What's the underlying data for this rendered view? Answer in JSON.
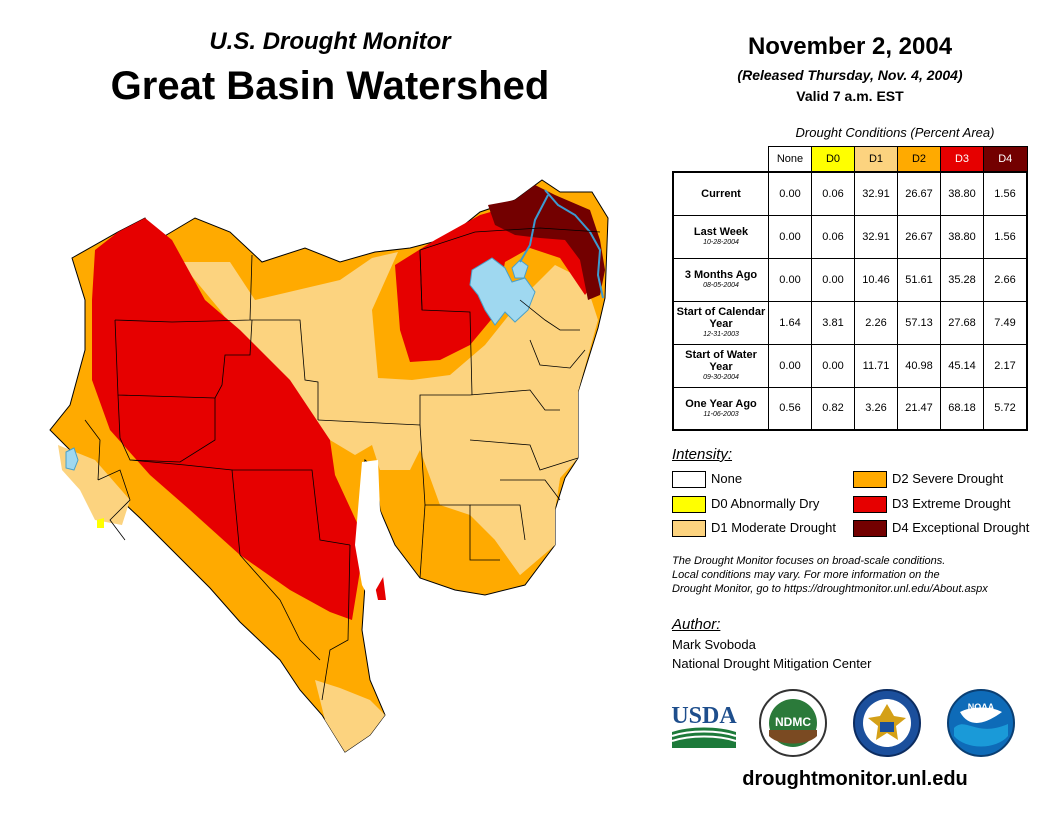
{
  "header": {
    "subtitle": "U.S. Drought Monitor",
    "title": "Great Basin Watershed",
    "date": "November 2, 2004",
    "released": "(Released Thursday, Nov. 4, 2004)",
    "valid": "Valid 7 a.m. EST"
  },
  "table": {
    "caption": "Drought Conditions (Percent Area)",
    "columns": [
      "None",
      "D0",
      "D1",
      "D2",
      "D3",
      "D4"
    ],
    "rows": [
      {
        "label": "Current",
        "date": "",
        "values": [
          "0.00",
          "0.06",
          "32.91",
          "26.67",
          "38.80",
          "1.56"
        ]
      },
      {
        "label": "Last Week",
        "date": "10-28-2004",
        "values": [
          "0.00",
          "0.06",
          "32.91",
          "26.67",
          "38.80",
          "1.56"
        ]
      },
      {
        "label": "3 Months Ago",
        "date": "08-05-2004",
        "values": [
          "0.00",
          "0.00",
          "10.46",
          "51.61",
          "35.28",
          "2.66"
        ]
      },
      {
        "label": "Start of Calendar Year",
        "date": "12-31-2003",
        "values": [
          "1.64",
          "3.81",
          "2.26",
          "57.13",
          "27.68",
          "7.49"
        ]
      },
      {
        "label": "Start of Water Year",
        "date": "09-30-2004",
        "values": [
          "0.00",
          "0.00",
          "11.71",
          "40.98",
          "45.14",
          "2.17"
        ]
      },
      {
        "label": "One Year Ago",
        "date": "11-06-2003",
        "values": [
          "0.56",
          "0.82",
          "3.26",
          "21.47",
          "68.18",
          "5.72"
        ]
      }
    ]
  },
  "legend": {
    "heading": "Intensity:",
    "items": [
      {
        "label": "None",
        "color": "#ffffff"
      },
      {
        "label": "D0 Abnormally Dry",
        "color": "#ffff00"
      },
      {
        "label": "D1 Moderate Drought",
        "color": "#fcd37f"
      },
      {
        "label": "D2 Severe Drought",
        "color": "#ffaa00"
      },
      {
        "label": "D3 Extreme Drought",
        "color": "#e60000"
      },
      {
        "label": "D4 Exceptional Drought",
        "color": "#730000"
      }
    ]
  },
  "note": {
    "line1": "The Drought Monitor focuses on broad-scale conditions.",
    "line2": "Local conditions may vary. For more information on the",
    "line3": "Drought Monitor, go to https://droughtmonitor.unl.edu/About.aspx"
  },
  "author": {
    "heading": "Author:",
    "name": "Mark Svoboda",
    "org": "National Drought Mitigation Center"
  },
  "logos": {
    "usda": "USDA",
    "ndmc": "NDMC",
    "noaa": "NOAA"
  },
  "website": "droughtmonitor.unl.edu",
  "colors": {
    "none": "#ffffff",
    "d0": "#ffff00",
    "d1": "#fcd37f",
    "d2": "#ffaa00",
    "d3": "#e60000",
    "d4": "#730000",
    "water": "#9fd8f0"
  }
}
